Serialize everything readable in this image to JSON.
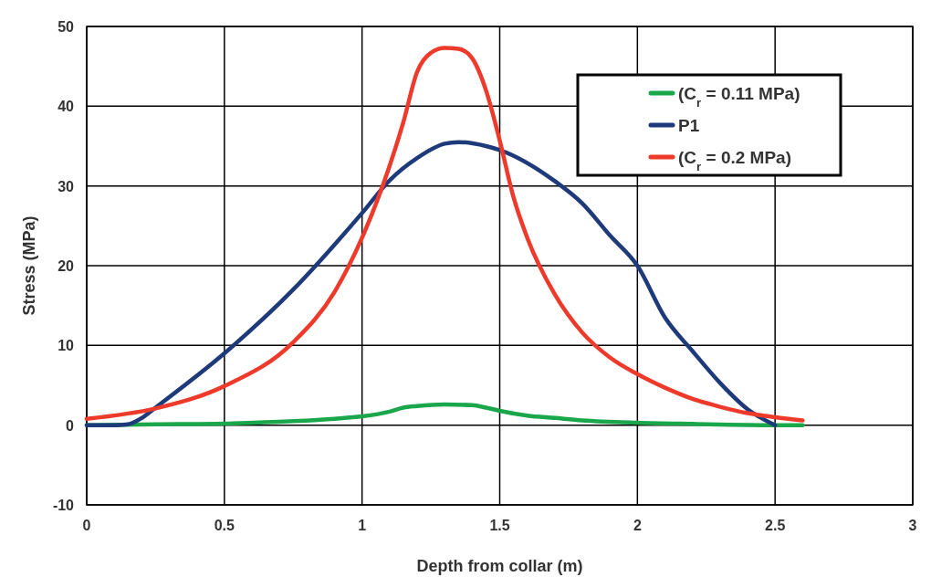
{
  "chart_data": {
    "type": "line",
    "xlabel": "Depth from collar (m)",
    "ylabel": "Stress (MPa)",
    "xlim": [
      0,
      3
    ],
    "ylim": [
      -10,
      50
    ],
    "xticks": [
      0,
      0.5,
      1,
      1.5,
      2,
      2.5,
      3
    ],
    "yticks": [
      -10,
      0,
      10,
      20,
      30,
      40,
      50
    ],
    "grid": true,
    "legend": "top right",
    "marker": "none",
    "line_style": "solid",
    "series": [
      {
        "name": "(C$_{r}$ = 0.11 MPa)",
        "color": "#1aa64a",
        "x": [
          0,
          0.25,
          0.5,
          0.75,
          0.9,
          1.0,
          1.1,
          1.15,
          1.2,
          1.3,
          1.4,
          1.45,
          1.5,
          1.6,
          1.7,
          1.8,
          2.0,
          2.2,
          2.5,
          2.6
        ],
        "values": [
          0,
          0.1,
          0.2,
          0.5,
          0.8,
          1.1,
          1.7,
          2.2,
          2.4,
          2.6,
          2.5,
          2.2,
          1.8,
          1.2,
          0.9,
          0.6,
          0.3,
          0.15,
          0,
          0
        ]
      },
      {
        "name": "P1",
        "color": "#1f3a7a",
        "x": [
          0,
          0.1,
          0.15,
          0.2,
          0.25,
          0.5,
          0.75,
          1.0,
          1.1,
          1.2,
          1.3,
          1.35,
          1.45,
          1.5,
          1.7,
          1.8,
          1.9,
          2.0,
          2.1,
          2.2,
          2.3,
          2.4,
          2.5
        ],
        "values": [
          0,
          0,
          0.1,
          0.9,
          2.2,
          9.0,
          17,
          26.6,
          30.7,
          33.5,
          35.3,
          35.5,
          35,
          34.5,
          30.6,
          27.8,
          23.8,
          20,
          13.5,
          9.3,
          5.3,
          2,
          0
        ]
      },
      {
        "name": "(C$_{r}$ = 0.2 MPa)",
        "color": "#ee3a2a",
        "x": [
          0,
          0.25,
          0.5,
          0.75,
          0.9,
          1.0,
          1.1,
          1.15,
          1.2,
          1.25,
          1.3,
          1.35,
          1.4,
          1.45,
          1.5,
          1.55,
          1.6,
          1.7,
          1.8,
          1.9,
          2.0,
          2.1,
          2.2,
          2.3,
          2.4,
          2.5,
          2.6
        ],
        "values": [
          0.8,
          2.1,
          4.9,
          10.4,
          16.7,
          23.5,
          32.5,
          38,
          44.3,
          46.7,
          47.3,
          47.2,
          46,
          42,
          35.7,
          28.6,
          23.5,
          16.4,
          11.6,
          8.5,
          6.4,
          4.7,
          3.3,
          2.3,
          1.5,
          1.0,
          0.6
        ]
      }
    ]
  }
}
